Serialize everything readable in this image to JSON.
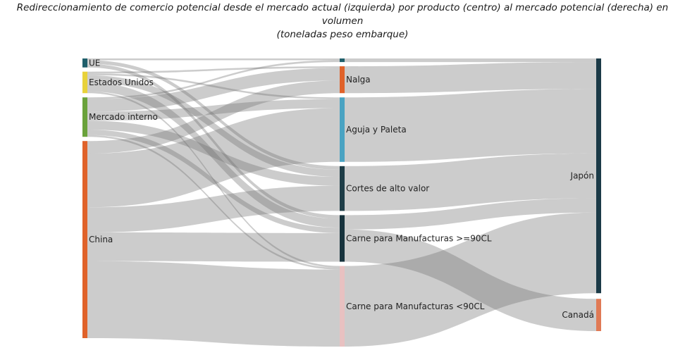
{
  "title_line1": "Redireccionamiento de comercio potencial desde el mercado actual (izquierda) por producto (centro) al mercado potencial (derecha) en volumen",
  "title_line2": "(toneladas peso embarque)",
  "chart_data": {
    "type": "sankey",
    "title": "Redireccionamiento de comercio potencial desde el mercado actual (izquierda) por producto (centro) al mercado potencial (derecha) en volumen (toneladas peso embarque)",
    "nodes": [
      {
        "id": "ue",
        "label": "UE",
        "column": 0,
        "color": "#1f5f6b"
      },
      {
        "id": "eeuu",
        "label": "Estados Unidos",
        "column": 0,
        "color": "#e8d23a"
      },
      {
        "id": "mi",
        "label": "Mercado interno",
        "column": 0,
        "color": "#6aa23b"
      },
      {
        "id": "china",
        "label": "China",
        "column": 0,
        "color": "#e0622a"
      },
      {
        "id": "p0",
        "label": "",
        "column": 1,
        "color": "#1f5f6b"
      },
      {
        "id": "nalga",
        "label": "Nalga",
        "column": 1,
        "color": "#e0622a"
      },
      {
        "id": "aguja",
        "label": "Aguja y Paleta",
        "column": 1,
        "color": "#4aa3c2"
      },
      {
        "id": "cortes",
        "label": "Cortes de alto valor",
        "column": 1,
        "color": "#1e3d47"
      },
      {
        "id": "cm90",
        "label": "Carne para Manufacturas >=90CL",
        "column": 1,
        "color": "#17333d"
      },
      {
        "id": "cmlt90",
        "label": "Carne para Manufacturas <90CL",
        "column": 1,
        "color": "#e8c1c1"
      },
      {
        "id": "japon",
        "label": "Japón",
        "column": 2,
        "color": "#1b3a47"
      },
      {
        "id": "canada",
        "label": "Canadá",
        "column": 2,
        "color": "#e07a55"
      }
    ],
    "links": [
      {
        "source": "ue",
        "target": "p0",
        "value": 1
      },
      {
        "source": "ue",
        "target": "cortes",
        "value": 2
      },
      {
        "source": "ue",
        "target": "cm90",
        "value": 2
      },
      {
        "source": "eeuu",
        "target": "nalga",
        "value": 1
      },
      {
        "source": "eeuu",
        "target": "aguja",
        "value": 1
      },
      {
        "source": "eeuu",
        "target": "cortes",
        "value": 4
      },
      {
        "source": "eeuu",
        "target": "cm90",
        "value": 5
      },
      {
        "source": "eeuu",
        "target": "cmlt90",
        "value": 1
      },
      {
        "source": "mi",
        "target": "p0",
        "value": 1
      },
      {
        "source": "mi",
        "target": "nalga",
        "value": 7
      },
      {
        "source": "mi",
        "target": "aguja",
        "value": 5
      },
      {
        "source": "mi",
        "target": "cortes",
        "value": 5
      },
      {
        "source": "mi",
        "target": "cm90",
        "value": 3
      },
      {
        "source": "mi",
        "target": "cmlt90",
        "value": 1
      },
      {
        "source": "china",
        "target": "nalga",
        "value": 7
      },
      {
        "source": "china",
        "target": "aguja",
        "value": 30
      },
      {
        "source": "china",
        "target": "cortes",
        "value": 14
      },
      {
        "source": "china",
        "target": "cm90",
        "value": 16
      },
      {
        "source": "china",
        "target": "cmlt90",
        "value": 43
      },
      {
        "source": "p0",
        "target": "japon",
        "value": 2
      },
      {
        "source": "nalga",
        "target": "japon",
        "value": 15
      },
      {
        "source": "aguja",
        "target": "japon",
        "value": 36
      },
      {
        "source": "cortes",
        "target": "japon",
        "value": 25
      },
      {
        "source": "cm90",
        "target": "japon",
        "value": 8
      },
      {
        "source": "cm90",
        "target": "canada",
        "value": 18
      },
      {
        "source": "cmlt90",
        "target": "japon",
        "value": 45
      }
    ],
    "link_color": "rgba(110,110,110,0.35)"
  }
}
